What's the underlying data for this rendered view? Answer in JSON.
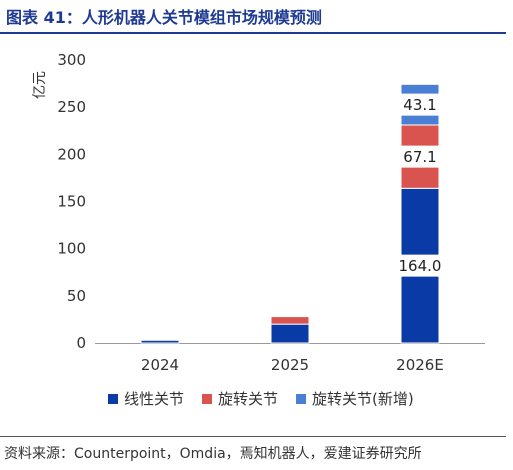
{
  "header": {
    "title": "图表 41：人形机器人关节模组市场规模预测"
  },
  "footer": {
    "source": "资料来源：Counterpoint，Omdia，焉知机器人，爱建证券研究所"
  },
  "chart_data": {
    "type": "bar",
    "stacked": true,
    "title": "图表 41：人形机器人关节模组市场规模预测",
    "ylabel": "亿元",
    "xlabel": "",
    "ylim": [
      0,
      300
    ],
    "yticks": [
      0,
      50,
      100,
      150,
      200,
      250,
      300
    ],
    "categories": [
      "2024",
      "2025",
      "2026E"
    ],
    "series": [
      {
        "name": "线性关节",
        "color": "#0a3aa6",
        "values": [
          3,
          20,
          164.0
        ],
        "labels": [
          "",
          "",
          "164.0"
        ]
      },
      {
        "name": "旋转关节",
        "color": "#d9534f",
        "values": [
          0.6,
          8,
          67.1
        ],
        "labels": [
          "",
          "",
          "67.1"
        ]
      },
      {
        "name": "旋转关节(新增)",
        "color": "#4a7fd6",
        "values": [
          0,
          0,
          43.1
        ],
        "labels": [
          "",
          "",
          "43.1"
        ]
      }
    ],
    "grid": false,
    "legend": "bottom"
  }
}
